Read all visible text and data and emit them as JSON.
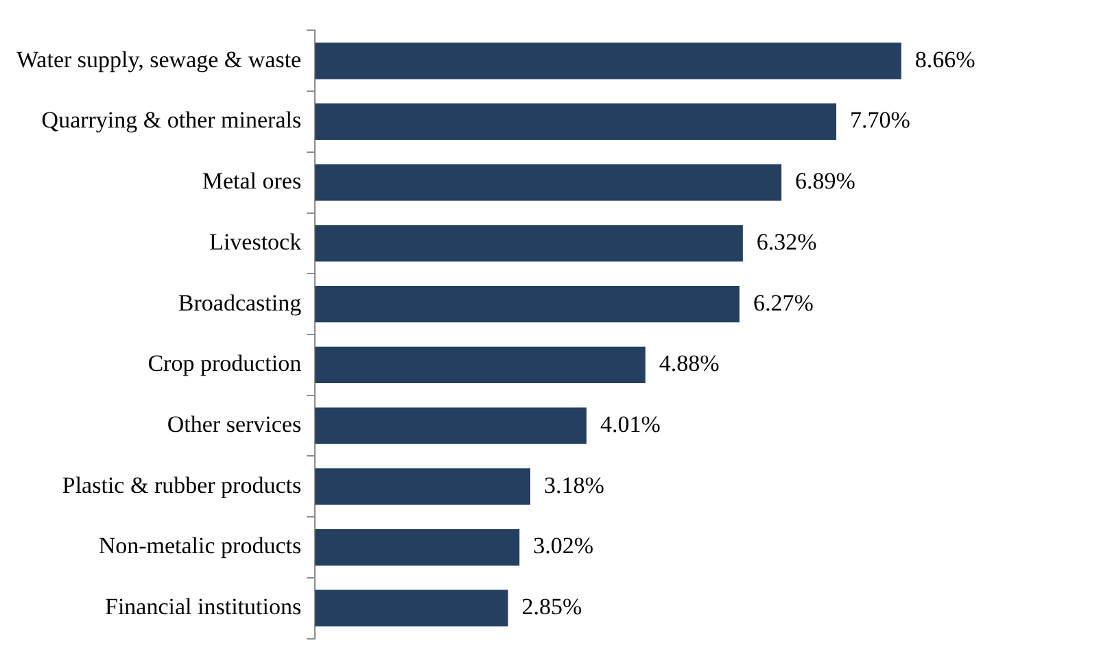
{
  "chart_data": {
    "type": "bar",
    "orientation": "horizontal",
    "categories": [
      "Water supply, sewage & waste",
      "Quarrying & other minerals",
      "Metal ores",
      "Livestock",
      "Broadcasting",
      "Crop production",
      "Other services",
      "Plastic & rubber products",
      "Non-metalic products",
      "Financial institutions"
    ],
    "values": [
      8.66,
      7.7,
      6.89,
      6.32,
      6.27,
      4.88,
      4.01,
      3.18,
      3.02,
      2.85
    ],
    "color": "#243f60",
    "value_labels": [
      "8.66%",
      "7.70%",
      "6.89%",
      "6.32%",
      "6.27%",
      "4.88%",
      "4.01%",
      "3.18%",
      "3.02%",
      "2.85%"
    ]
  }
}
